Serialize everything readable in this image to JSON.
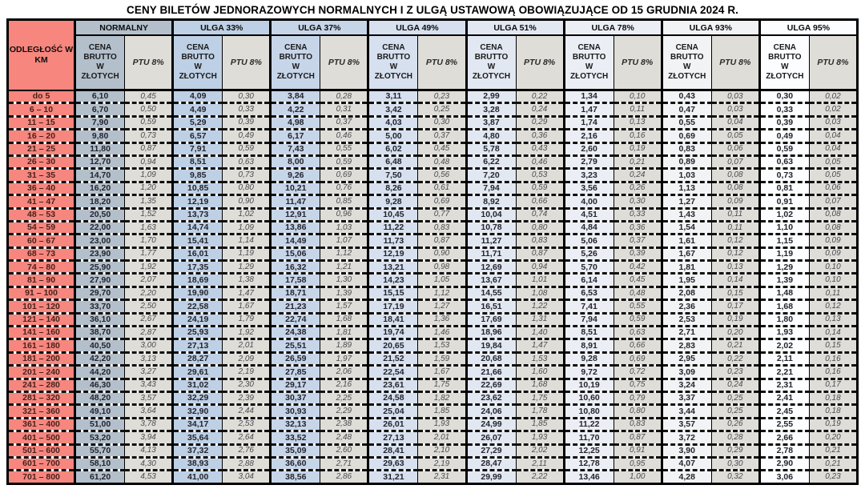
{
  "page_title": "CENY BILETÓW JEDNORAZOWYCH NORMALNYCH I Z ULGĄ USTAWOWĄ OBOWIĄZUJĄCE OD 15 GRUDNIA 2024 R.",
  "colors": {
    "distance_bg": "#f6867e",
    "tax_bg": "#dfddd7",
    "grid": "#000000"
  },
  "table": {
    "distance_header": "ODLEGŁOŚĆ W KM",
    "price_header": "CENA BRUTTO W ZŁOTYCH",
    "tax_header": "PTU 8%",
    "groups": [
      {
        "label": "NORMALNY",
        "tint": "#b3c0cc"
      },
      {
        "label": "ULGA 33%",
        "tint": "#bed0e5"
      },
      {
        "label": "ULGA 37%",
        "tint": "#c7d5e9"
      },
      {
        "label": "ULGA 49%",
        "tint": "#d6e0ef"
      },
      {
        "label": "ULGA 51%",
        "tint": "#e2e8f2"
      },
      {
        "label": "ULGA 78%",
        "tint": "#ebeef5"
      },
      {
        "label": "ULGA 93%",
        "tint": "#f2f3f5"
      },
      {
        "label": "ULGA 95%",
        "tint": "#fbfdff"
      }
    ],
    "rows": [
      {
        "distance": "do 5",
        "cells": [
          "6,10",
          "0,45",
          "4,09",
          "0,30",
          "3,84",
          "0,28",
          "3,11",
          "0,23",
          "2,99",
          "0,22",
          "1,34",
          "0,10",
          "0,43",
          "0,03",
          "0,30",
          "0,02"
        ]
      },
      {
        "distance": "6 – 10",
        "cells": [
          "6,70",
          "0,50",
          "4,49",
          "0,33",
          "4,22",
          "0,31",
          "3,42",
          "0,25",
          "3,28",
          "0,24",
          "1,47",
          "0,11",
          "0,47",
          "0,03",
          "0,33",
          "0,02"
        ]
      },
      {
        "distance": "11 – 15",
        "cells": [
          "7,90",
          "0,59",
          "5,29",
          "0,39",
          "4,98",
          "0,37",
          "4,03",
          "0,30",
          "3,87",
          "0,29",
          "1,74",
          "0,13",
          "0,55",
          "0,04",
          "0,39",
          "0,03"
        ]
      },
      {
        "distance": "16 – 20",
        "cells": [
          "9,80",
          "0,73",
          "6,57",
          "0,49",
          "6,17",
          "0,46",
          "5,00",
          "0,37",
          "4,80",
          "0,36",
          "2,16",
          "0,16",
          "0,69",
          "0,05",
          "0,49",
          "0,04"
        ]
      },
      {
        "distance": "21 – 25",
        "cells": [
          "11,80",
          "0,87",
          "7,91",
          "0,59",
          "7,43",
          "0,55",
          "6,02",
          "0,45",
          "5,78",
          "0,43",
          "2,60",
          "0,19",
          "0,83",
          "0,06",
          "0,59",
          "0,04"
        ]
      },
      {
        "distance": "26 – 30",
        "cells": [
          "12,70",
          "0,94",
          "8,51",
          "0,63",
          "8,00",
          "0,59",
          "6,48",
          "0,48",
          "6,22",
          "0,46",
          "2,79",
          "0,21",
          "0,89",
          "0,07",
          "0,63",
          "0,05"
        ]
      },
      {
        "distance": "31 – 35",
        "cells": [
          "14,70",
          "1,09",
          "9,85",
          "0,73",
          "9,26",
          "0,69",
          "7,50",
          "0,56",
          "7,20",
          "0,53",
          "3,23",
          "0,24",
          "1,03",
          "0,08",
          "0,73",
          "0,05"
        ]
      },
      {
        "distance": "36 – 40",
        "cells": [
          "16,20",
          "1,20",
          "10,85",
          "0,80",
          "10,21",
          "0,76",
          "8,26",
          "0,61",
          "7,94",
          "0,59",
          "3,56",
          "0,26",
          "1,13",
          "0,08",
          "0,81",
          "0,06"
        ]
      },
      {
        "distance": "41 – 47",
        "cells": [
          "18,20",
          "1,35",
          "12,19",
          "0,90",
          "11,47",
          "0,85",
          "9,28",
          "0,69",
          "8,92",
          "0,66",
          "4,00",
          "0,30",
          "1,27",
          "0,09",
          "0,91",
          "0,07"
        ]
      },
      {
        "distance": "48 – 53",
        "cells": [
          "20,50",
          "1,52",
          "13,73",
          "1,02",
          "12,91",
          "0,96",
          "10,45",
          "0,77",
          "10,04",
          "0,74",
          "4,51",
          "0,33",
          "1,43",
          "0,11",
          "1,02",
          "0,08"
        ]
      },
      {
        "distance": "54 – 59",
        "cells": [
          "22,00",
          "1,63",
          "14,74",
          "1,09",
          "13,86",
          "1,03",
          "11,22",
          "0,83",
          "10,78",
          "0,80",
          "4,84",
          "0,36",
          "1,54",
          "0,11",
          "1,10",
          "0,08"
        ]
      },
      {
        "distance": "60 – 67",
        "cells": [
          "23,00",
          "1,70",
          "15,41",
          "1,14",
          "14,49",
          "1,07",
          "11,73",
          "0,87",
          "11,27",
          "0,83",
          "5,06",
          "0,37",
          "1,61",
          "0,12",
          "1,15",
          "0,09"
        ]
      },
      {
        "distance": "68 – 73",
        "cells": [
          "23,90",
          "1,77",
          "16,01",
          "1,19",
          "15,06",
          "1,12",
          "12,19",
          "0,90",
          "11,71",
          "0,87",
          "5,26",
          "0,39",
          "1,67",
          "0,12",
          "1,19",
          "0,09"
        ]
      },
      {
        "distance": "74 – 80",
        "cells": [
          "25,90",
          "1,92",
          "17,35",
          "1,29",
          "16,32",
          "1,21",
          "13,21",
          "0,98",
          "12,69",
          "0,94",
          "5,70",
          "0,42",
          "1,81",
          "0,13",
          "1,29",
          "0,10"
        ]
      },
      {
        "distance": "81 – 90",
        "cells": [
          "27,90",
          "2,07",
          "18,69",
          "1,38",
          "17,58",
          "1,30",
          "14,23",
          "1,05",
          "13,67",
          "1,01",
          "6,14",
          "0,45",
          "1,95",
          "0,14",
          "1,39",
          "0,10"
        ]
      },
      {
        "distance": "91 – 100",
        "cells": [
          "29,70",
          "2,20",
          "19,90",
          "1,47",
          "18,71",
          "1,39",
          "15,15",
          "1,12",
          "14,55",
          "1,08",
          "6,53",
          "0,48",
          "2,08",
          "0,15",
          "1,48",
          "0,11"
        ]
      },
      {
        "distance": "101 – 120",
        "cells": [
          "33,70",
          "2,50",
          "22,58",
          "1,67",
          "21,23",
          "1,57",
          "17,19",
          "1,27",
          "16,51",
          "1,22",
          "7,41",
          "0,55",
          "2,36",
          "0,17",
          "1,68",
          "0,12"
        ]
      },
      {
        "distance": "121 – 140",
        "cells": [
          "36,10",
          "2,67",
          "24,19",
          "1,79",
          "22,74",
          "1,68",
          "18,41",
          "1,36",
          "17,69",
          "1,31",
          "7,94",
          "0,59",
          "2,53",
          "0,19",
          "1,80",
          "0,13"
        ]
      },
      {
        "distance": "141 – 160",
        "cells": [
          "38,70",
          "2,87",
          "25,93",
          "1,92",
          "24,38",
          "1,81",
          "19,74",
          "1,46",
          "18,96",
          "1,40",
          "8,51",
          "0,63",
          "2,71",
          "0,20",
          "1,93",
          "0,14"
        ]
      },
      {
        "distance": "161 – 180",
        "cells": [
          "40,50",
          "3,00",
          "27,13",
          "2,01",
          "25,51",
          "1,89",
          "20,65",
          "1,53",
          "19,84",
          "1,47",
          "8,91",
          "0,66",
          "2,83",
          "0,21",
          "2,02",
          "0,15"
        ]
      },
      {
        "distance": "181 – 200",
        "cells": [
          "42,20",
          "3,13",
          "28,27",
          "2,09",
          "26,59",
          "1,97",
          "21,52",
          "1,59",
          "20,68",
          "1,53",
          "9,28",
          "0,69",
          "2,95",
          "0,22",
          "2,11",
          "0,16"
        ]
      },
      {
        "distance": "201 – 240",
        "cells": [
          "44,20",
          "3,27",
          "29,61",
          "2,19",
          "27,85",
          "2,06",
          "22,54",
          "1,67",
          "21,66",
          "1,60",
          "9,72",
          "0,72",
          "3,09",
          "0,23",
          "2,21",
          "0,16"
        ]
      },
      {
        "distance": "241 – 280",
        "cells": [
          "46,30",
          "3,43",
          "31,02",
          "2,30",
          "29,17",
          "2,16",
          "23,61",
          "1,75",
          "22,69",
          "1,68",
          "10,19",
          "0,75",
          "3,24",
          "0,24",
          "2,31",
          "0,17"
        ]
      },
      {
        "distance": "281 – 320",
        "cells": [
          "48,20",
          "3,57",
          "32,29",
          "2,39",
          "30,37",
          "2,25",
          "24,58",
          "1,82",
          "23,62",
          "1,75",
          "10,60",
          "0,79",
          "3,37",
          "0,25",
          "2,41",
          "0,18"
        ]
      },
      {
        "distance": "321 – 360",
        "cells": [
          "49,10",
          "3,64",
          "32,90",
          "2,44",
          "30,93",
          "2,29",
          "25,04",
          "1,85",
          "24,06",
          "1,78",
          "10,80",
          "0,80",
          "3,44",
          "0,25",
          "2,45",
          "0,18"
        ]
      },
      {
        "distance": "361 – 400",
        "cells": [
          "51,00",
          "3,78",
          "34,17",
          "2,53",
          "32,13",
          "2,38",
          "26,01",
          "1,93",
          "24,99",
          "1,85",
          "11,22",
          "0,83",
          "3,57",
          "0,26",
          "2,55",
          "0,19"
        ]
      },
      {
        "distance": "401 – 500",
        "cells": [
          "53,20",
          "3,94",
          "35,64",
          "2,64",
          "33,52",
          "2,48",
          "27,13",
          "2,01",
          "26,07",
          "1,93",
          "11,70",
          "0,87",
          "3,72",
          "0,28",
          "2,66",
          "0,20"
        ]
      },
      {
        "distance": "501 – 600",
        "cells": [
          "55,70",
          "4,13",
          "37,32",
          "2,76",
          "35,09",
          "2,60",
          "28,41",
          "2,10",
          "27,29",
          "2,02",
          "12,25",
          "0,91",
          "3,90",
          "0,29",
          "2,78",
          "0,21"
        ]
      },
      {
        "distance": "601 – 700",
        "cells": [
          "58,10",
          "4,30",
          "38,93",
          "2,88",
          "36,60",
          "2,71",
          "29,63",
          "2,19",
          "28,47",
          "2,11",
          "12,78",
          "0,95",
          "4,07",
          "0,30",
          "2,90",
          "0,21"
        ]
      },
      {
        "distance": "701 – 800",
        "cells": [
          "61,20",
          "4,53",
          "41,00",
          "3,04",
          "38,56",
          "2,86",
          "31,21",
          "2,31",
          "29,99",
          "2,22",
          "13,46",
          "1,00",
          "4,28",
          "0,32",
          "3,06",
          "0,23"
        ]
      }
    ]
  }
}
